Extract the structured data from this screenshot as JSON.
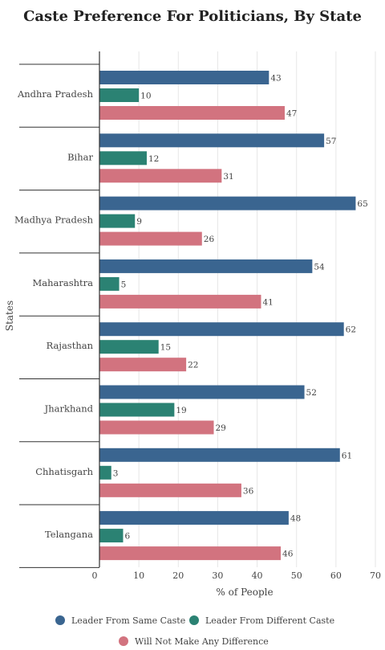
{
  "chart_data": {
    "type": "bar",
    "orientation": "horizontal",
    "title": "Caste Preference For Politicians, By State",
    "xlabel": "% of People",
    "ylabel": "States",
    "xlim": [
      0,
      70
    ],
    "xticks": [
      0,
      10,
      20,
      30,
      40,
      50,
      60,
      70
    ],
    "grid": true,
    "legend_position": "bottom",
    "categories": [
      "Andhra Pradesh",
      "Bihar",
      "Madhya Pradesh",
      "Maharashtra",
      "Rajasthan",
      "Jharkhand",
      "Chhatisgarh",
      "Telangana"
    ],
    "series": [
      {
        "name": "Leader From Same Caste",
        "color": "#3a6590",
        "values": [
          43,
          57,
          65,
          54,
          62,
          52,
          61,
          48
        ]
      },
      {
        "name": "Leader From Different Caste",
        "color": "#2b8273",
        "values": [
          10,
          12,
          9,
          5,
          15,
          19,
          3,
          6
        ]
      },
      {
        "name": "Will Not Make Any Difference",
        "color": "#d2737f",
        "values": [
          47,
          31,
          26,
          41,
          22,
          29,
          36,
          46
        ]
      }
    ]
  }
}
